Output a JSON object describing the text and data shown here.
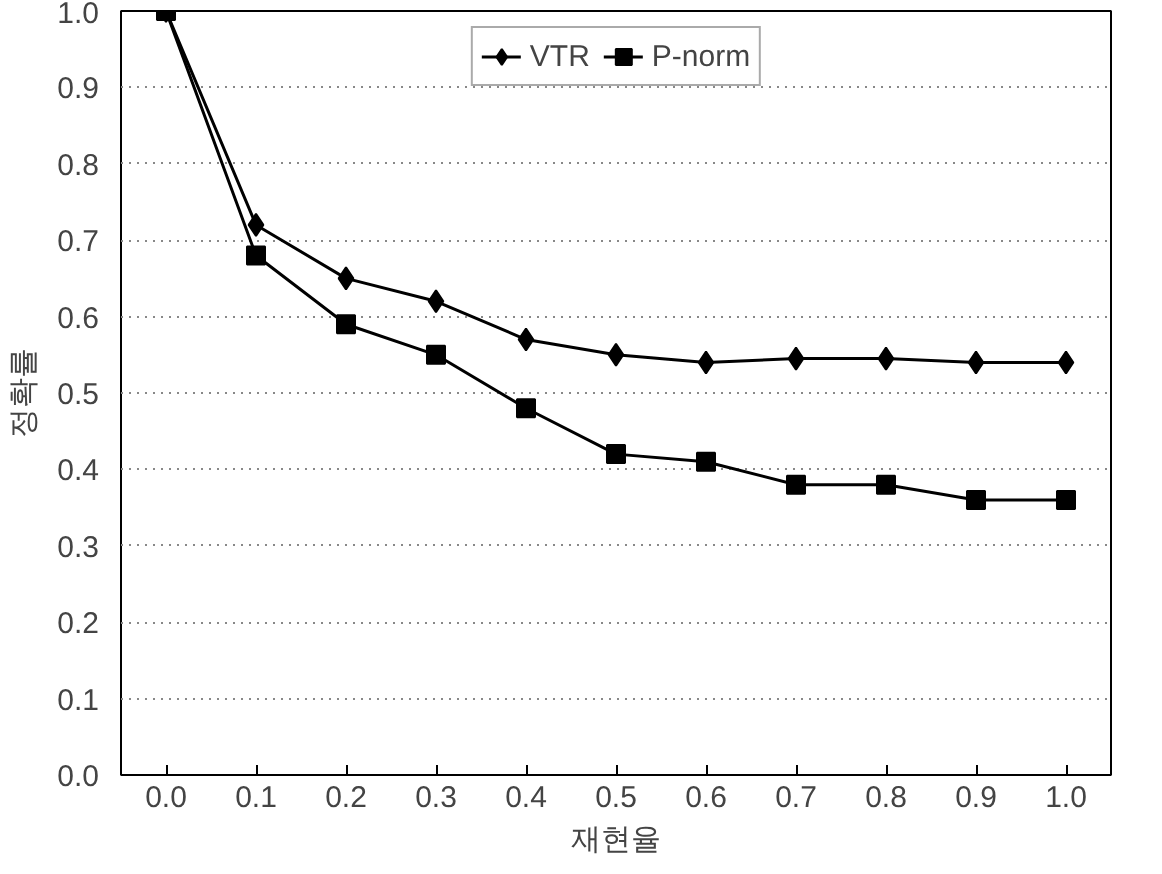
{
  "chart_data": {
    "type": "line",
    "xlabel": "재현율",
    "ylabel": "정확률",
    "categories": [
      "0.0",
      "0.1",
      "0.2",
      "0.3",
      "0.4",
      "0.5",
      "0.6",
      "0.7",
      "0.8",
      "0.9",
      "1.0"
    ],
    "series": [
      {
        "name": "VTR",
        "color": "#000000",
        "marker": "diamond",
        "values": [
          1.0,
          0.72,
          0.65,
          0.62,
          0.57,
          0.55,
          0.54,
          0.545,
          0.545,
          0.54,
          0.54
        ]
      },
      {
        "name": "P-norm",
        "color": "#000000",
        "marker": "square",
        "values": [
          1.0,
          0.68,
          0.59,
          0.55,
          0.48,
          0.42,
          0.41,
          0.38,
          0.38,
          0.36,
          0.36
        ]
      }
    ],
    "ylim": [
      0,
      1
    ],
    "yticks": [
      {
        "value": 0,
        "label": "0.0"
      },
      0.1,
      0.2,
      0.3,
      0.4,
      0.5,
      0.6,
      0.7,
      0.8,
      0.9,
      {
        "value": 1,
        "label": "1.0"
      }
    ],
    "grid": "y",
    "legend": "top",
    "line_style": "solid"
  }
}
